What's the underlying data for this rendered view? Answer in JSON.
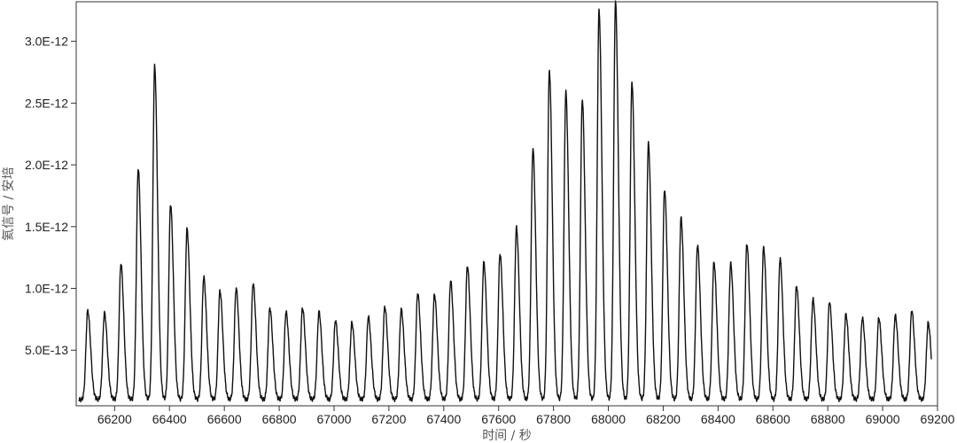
{
  "chart_data": {
    "type": "line",
    "title": "",
    "xlabel": "时间 / 秒",
    "ylabel": "氦信号 / 安培",
    "xlim": [
      66060,
      69200
    ],
    "ylim": [
      5e-14,
      3.32e-12
    ],
    "xticks": [
      66200,
      66400,
      66600,
      66800,
      67000,
      67200,
      67400,
      67600,
      67800,
      68000,
      68200,
      68400,
      68600,
      68800,
      69000,
      69200
    ],
    "xtick_labels": [
      "66200",
      "66400",
      "66600",
      "66800",
      "67000",
      "67200",
      "67400",
      "67600",
      "67800",
      "68000",
      "68200",
      "68400",
      "68600",
      "68800",
      "69000",
      "69200"
    ],
    "yticks": [
      5e-13,
      1e-12,
      1.5e-12,
      2e-12,
      2.5e-12,
      3e-12
    ],
    "ytick_labels": [
      "5.0E-13",
      "1.0E-12",
      "1.5E-12",
      "2.0E-12",
      "2.5E-12",
      "3.0E-12"
    ],
    "grid": false,
    "legend": "none",
    "series_color": "#111111",
    "baseline": 1e-13,
    "peaks": {
      "x": [
        66102,
        66163,
        66223,
        66286,
        66346,
        66404,
        66464,
        66525,
        66584,
        66643,
        66705,
        66766,
        66825,
        66885,
        66945,
        67005,
        67065,
        67125,
        67185,
        67245,
        67305,
        67366,
        67425,
        67486,
        67546,
        67605,
        67665,
        67725,
        67785,
        67845,
        67905,
        67966,
        68026,
        68086,
        68146,
        68205,
        68265,
        68325,
        68385,
        68446,
        68505,
        68566,
        68626,
        68686,
        68746,
        68806,
        68866,
        68926,
        68986,
        69046,
        69106,
        69166
      ],
      "y": [
        8.2e-13,
        8e-13,
        1.2e-12,
        1.97e-12,
        2.8e-12,
        1.68e-12,
        1.48e-12,
        1.09e-12,
        9.8e-13,
        1e-12,
        1.04e-12,
        8.4e-13,
        8.1e-13,
        8.4e-13,
        8.1e-13,
        7.4e-13,
        7.2e-13,
        7.7e-13,
        8.5e-13,
        8.3e-13,
        9.6e-13,
        9.5e-13,
        1.06e-12,
        1.18e-12,
        1.21e-12,
        1.28e-12,
        1.49e-12,
        2.13e-12,
        2.76e-12,
        2.59e-12,
        2.53e-12,
        3.25e-12,
        3.32e-12,
        2.67e-12,
        2.17e-12,
        1.8e-12,
        1.57e-12,
        1.35e-12,
        1.21e-12,
        1.2e-12,
        1.36e-12,
        1.33e-12,
        1.24e-12,
        1.02e-12,
        9.1e-13,
        8.9e-13,
        7.9e-13,
        7.6e-13,
        7.6e-13,
        7.8e-13,
        8.2e-13,
        7.2e-13
      ]
    }
  }
}
